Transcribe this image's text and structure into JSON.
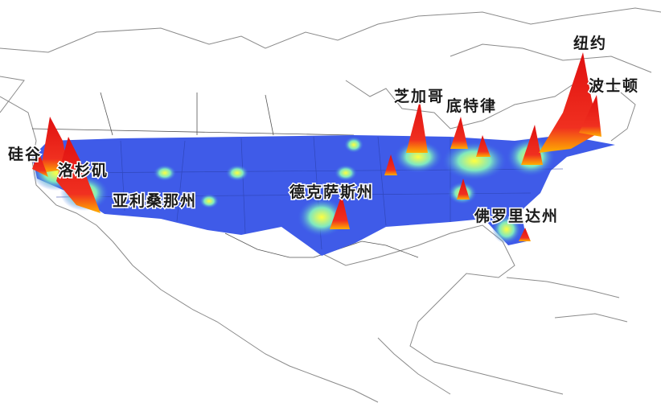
{
  "labels": {
    "silicon_valley": "硅谷",
    "los_angeles": "洛杉矶",
    "arizona": "亚利桑那州",
    "texas": "德克萨斯州",
    "chicago": "芝加哥",
    "detroit": "底特律",
    "new_york": "纽约",
    "boston": "波士顿",
    "florida": "佛罗里达州"
  }
}
